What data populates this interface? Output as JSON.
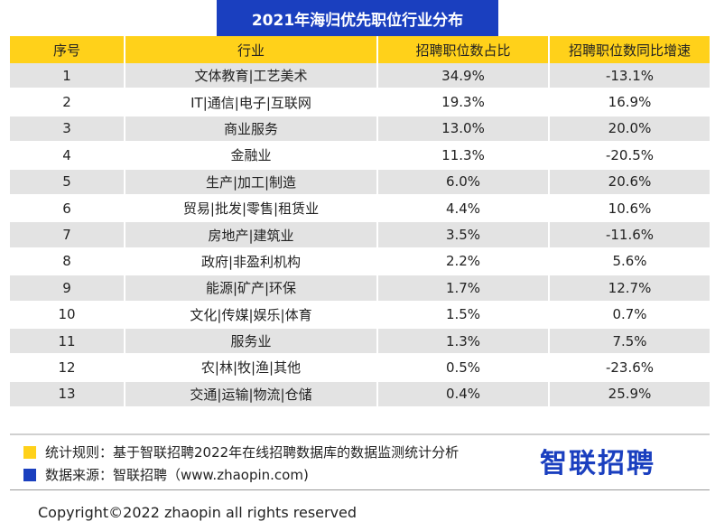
{
  "chart_data": {
    "type": "table",
    "title": "2021年海归优先职位行业分布",
    "columns": [
      "序号",
      "行业",
      "招聘职位数占比",
      "招聘职位数同比增速"
    ],
    "rows": [
      [
        "1",
        "文体教育|工艺美术",
        "34.9%",
        "-13.1%"
      ],
      [
        "2",
        "IT|通信|电子|互联网",
        "19.3%",
        "16.9%"
      ],
      [
        "3",
        "商业服务",
        "13.0%",
        "20.0%"
      ],
      [
        "4",
        "金融业",
        "11.3%",
        "-20.5%"
      ],
      [
        "5",
        "生产|加工|制造",
        "6.0%",
        "20.6%"
      ],
      [
        "6",
        "贸易|批发|零售|租赁业",
        "4.4%",
        "10.6%"
      ],
      [
        "7",
        "房地产|建筑业",
        "3.5%",
        "-11.6%"
      ],
      [
        "8",
        "政府|非盈利机构",
        "2.2%",
        "5.6%"
      ],
      [
        "9",
        "能源|矿产|环保",
        "1.7%",
        "12.7%"
      ],
      [
        "10",
        "文化|传媒|娱乐|体育",
        "1.5%",
        "0.7%"
      ],
      [
        "11",
        "服务业",
        "1.3%",
        "7.5%"
      ],
      [
        "12",
        "农|林|牧|渔|其他",
        "0.5%",
        "-23.6%"
      ],
      [
        "13",
        "交通|运输|物流|仓储",
        "0.4%",
        "25.9%"
      ]
    ]
  },
  "notes": {
    "rule": "统计规则：基于智联招聘2022年在线招聘数据库的数据监测统计分析",
    "source": "数据来源：智联招聘（www.zhaopin.com)"
  },
  "logo_text": "智联招聘",
  "copyright": "Copyright©2022 zhaopin all rights reserved",
  "colors": {
    "title_bg": "#1a3fbf",
    "header_bg": "#ffd11a",
    "row_stripe": "#e3e3e3",
    "note_yellow": "#ffd11a",
    "note_blue": "#1a3fbf",
    "logo": "#1a3fbf"
  }
}
